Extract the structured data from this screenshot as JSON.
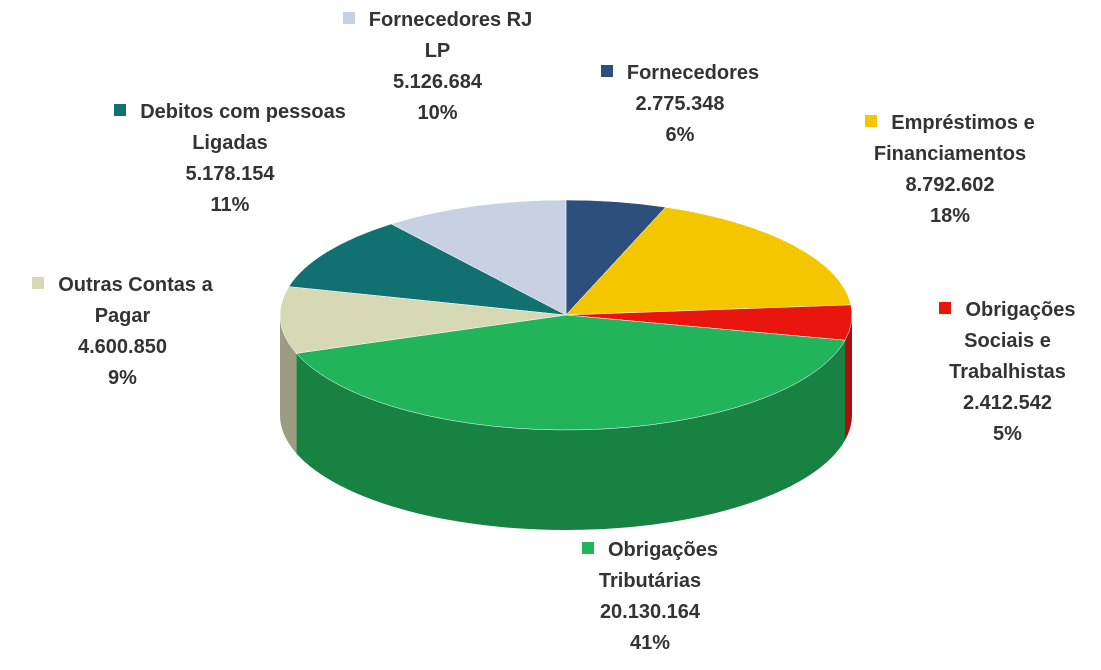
{
  "chart_data": {
    "type": "pie",
    "categories": [
      "Fornecedores",
      "Empréstimos e Financiamentos",
      "Obrigações Sociais e Trabalhistas",
      "Obrigações Tributárias",
      "Outras Contas a Pagar",
      "Debitos com pessoas Ligadas",
      "Fornecedores RJ LP"
    ],
    "values": [
      2775348,
      8792602,
      2412542,
      20130164,
      4600850,
      5178154,
      5126684
    ],
    "value_labels": [
      "2.775.348",
      "8.792.602",
      "2.412.542",
      "20.130.164",
      "4.600.850",
      "5.178.154",
      "5.126.684"
    ],
    "percent_labels": [
      "6%",
      "18%",
      "5%",
      "41%",
      "9%",
      "11%",
      "10%"
    ],
    "colors": [
      "#2d4f7c",
      "#f3c600",
      "#e8160f",
      "#22b45b",
      "#d7d9b5",
      "#117171",
      "#c8d0e3"
    ]
  }
}
